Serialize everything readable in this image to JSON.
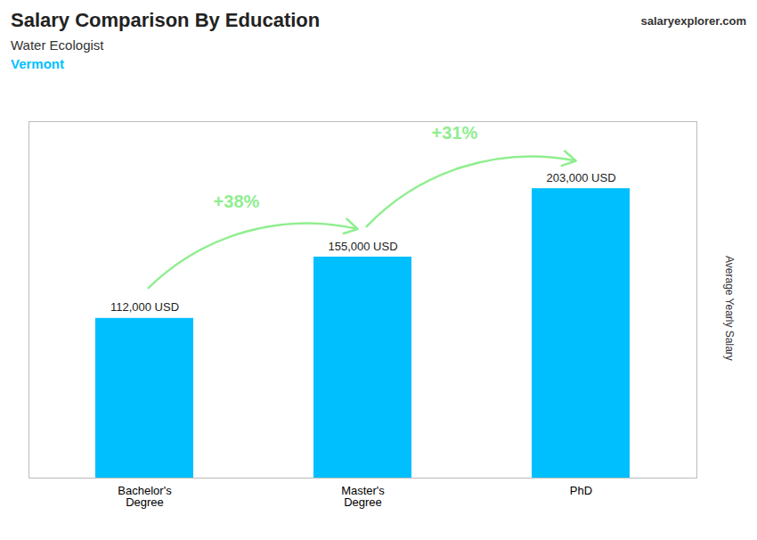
{
  "chart_data": {
    "type": "bar",
    "title": "Salary Comparison By Education",
    "subtitle": "Water Ecologist",
    "categories": [
      "Bachelor's\nDegree",
      "Master's\nDegree",
      "PhD"
    ],
    "values": [
      112000,
      155000,
      203000
    ],
    "value_labels": [
      "112,000 USD",
      "155,000 USD",
      "203,000 USD"
    ],
    "data_labels": true,
    "color": "#00BFFF",
    "ylim": [
      0,
      250000
    ],
    "tick_labels": "x",
    "ylabel": "Average Yearly Salary",
    "annotations": [
      {
        "text": "+38%",
        "from": "Bachelor's\nDegree",
        "to": "Master's\nDegree",
        "color": "#90EE90"
      },
      {
        "text": "+31%",
        "from": "Master's\nDegree",
        "to": "PhD",
        "color": "#90EE90"
      },
      {
        "text": "Vermont",
        "color": "#00BFFF"
      },
      {
        "text": "salaryexplorer.com"
      }
    ]
  }
}
